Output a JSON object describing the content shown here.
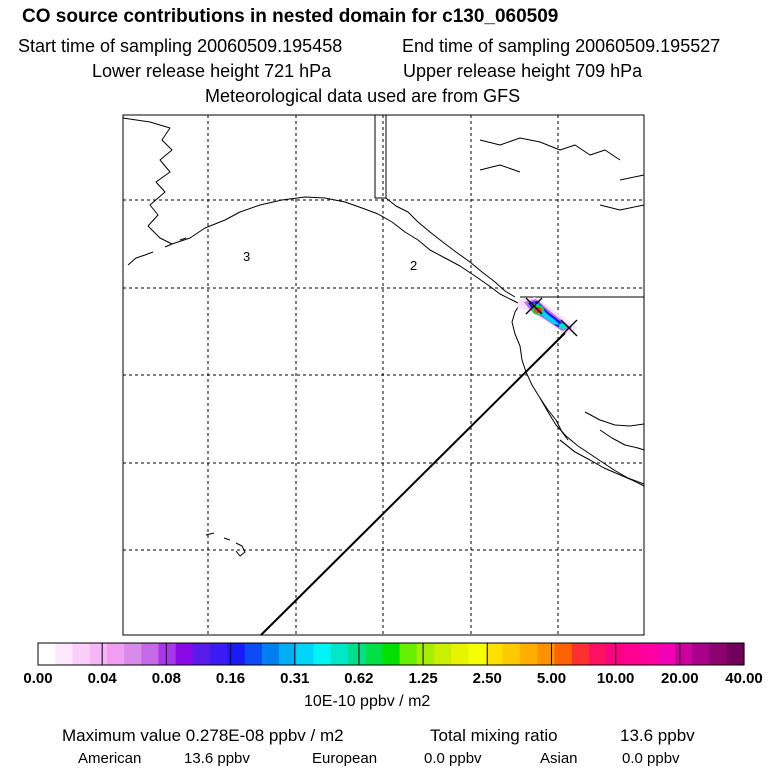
{
  "header": {
    "title": "CO  source contributions in nested domain for c130_060509",
    "start_label": "Start time of sampling 20060509.195458",
    "end_label": "End time of sampling 20060509.195527",
    "lower_label": "Lower release height  721 hPa",
    "upper_label": "Upper release height  709 hPa",
    "met_label": "Meteorological data used are from GFS"
  },
  "map": {
    "region_labels": [
      "3",
      "2"
    ],
    "coastline_color": "#000000",
    "grid_style": "dashed"
  },
  "colorbar": {
    "colors": [
      "#ffffff",
      "#fde8fd",
      "#f9cff9",
      "#f5b7f5",
      "#f19df1",
      "#d98be9",
      "#c46ae9",
      "#a934e9",
      "#8a07e6",
      "#5a1ae9",
      "#3b1bf4",
      "#1a1bf6",
      "#0a4bf3",
      "#0080f0",
      "#00aef4",
      "#00d4f8",
      "#00f4f4",
      "#00e6c8",
      "#00e08a",
      "#00e044",
      "#00e000",
      "#66f000",
      "#a6ee00",
      "#c8f000",
      "#e7f400",
      "#f4ff00",
      "#ffe000",
      "#ffc800",
      "#ffae00",
      "#ff9000",
      "#ff6200",
      "#ff3030",
      "#ff1060",
      "#ff0080",
      "#ff0090",
      "#ff00a0",
      "#f200b4",
      "#cc009c",
      "#a8008a",
      "#8c0070",
      "#70005c"
    ],
    "tick_labels": [
      "0.00",
      "0.04",
      "0.08",
      "0.16",
      "0.31",
      "0.62",
      "1.25",
      "2.50",
      "5.00",
      "10.00",
      "20.00",
      "40.00"
    ],
    "units": "10E-10 ppbv / m2"
  },
  "summary": {
    "max_label": "Maximum value  0.278E-08 ppbv / m2",
    "total_label": "Total mixing ratio",
    "total_value": "13.6 ppbv",
    "american_label": "American",
    "american_value": "13.6 ppbv",
    "european_label": "European",
    "european_value": "0.0 ppbv",
    "asian_label": "Asian",
    "asian_value": "0.0 ppbv"
  }
}
